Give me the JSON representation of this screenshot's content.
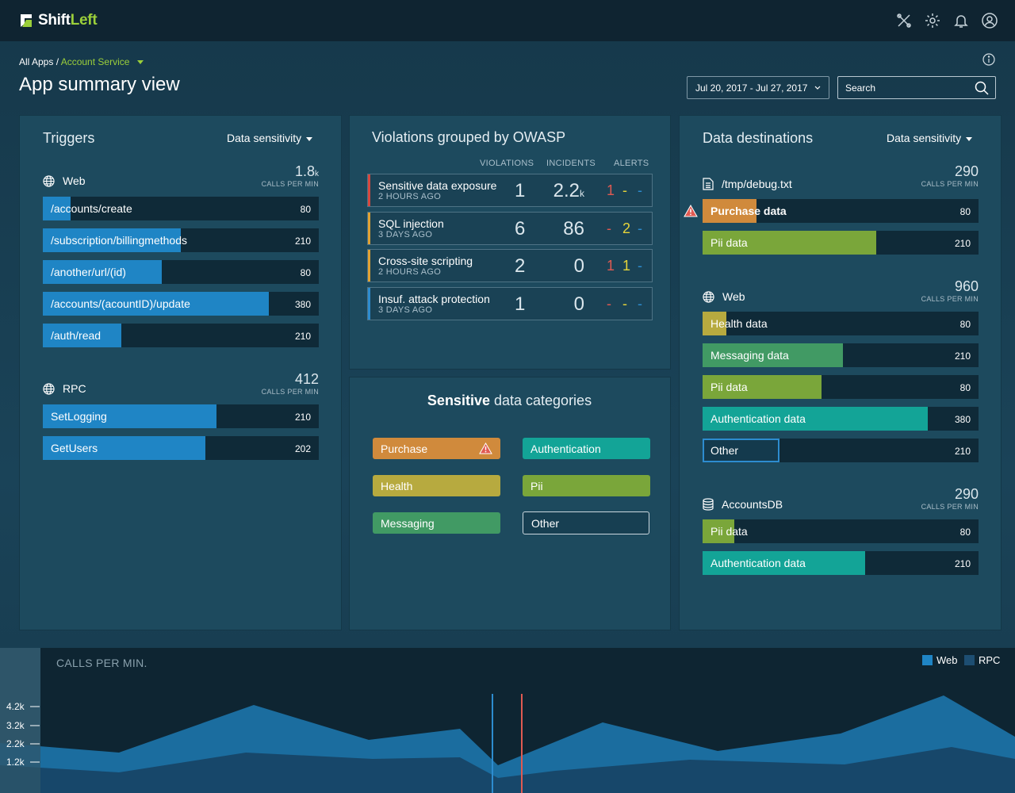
{
  "app": {
    "brand_a": "Shift",
    "brand_b": "Left"
  },
  "breadcrumb": {
    "root": "All Apps /",
    "current": "Account Service"
  },
  "page_title": "App summary view",
  "date_range": "Jul 20, 2017 - Jul 27, 2017",
  "search_placeholder": "Search",
  "triggers": {
    "title": "Triggers",
    "dropdown": "Data sensitivity",
    "web": {
      "label": "Web",
      "num": "1.8",
      "unit": "k",
      "calls_label": "CALLS PER MIN",
      "items": [
        {
          "name": "/accounts/create",
          "value": "80",
          "pct": 0.1
        },
        {
          "name": "/subscription/billingmethods",
          "value": "210",
          "pct": 0.5
        },
        {
          "name": "/another/url/(id)",
          "value": "80",
          "pct": 0.43
        },
        {
          "name": "/accounts/(acountID)/update",
          "value": "380",
          "pct": 0.82
        },
        {
          "name": "/auth/read",
          "value": "210",
          "pct": 0.285
        }
      ]
    },
    "rpc": {
      "label": "RPC",
      "num": "412",
      "calls_label": "CALLS PER MIN",
      "items": [
        {
          "name": "SetLogging",
          "value": "210",
          "pct": 0.63
        },
        {
          "name": "GetUsers",
          "value": "202",
          "pct": 0.59
        }
      ]
    }
  },
  "owasp": {
    "title": "Violations grouped by OWASP",
    "headers": {
      "violations": "VIOLATIONS",
      "incidents": "INCIDENTS",
      "alerts": "ALERTS"
    },
    "rows": [
      {
        "title": "Sensitive data exposure",
        "sub": "2 HOURS AGO",
        "violations": "1",
        "incidents": "2.2",
        "inc_unit": "k",
        "alerts": [
          "1",
          "-",
          "-"
        ],
        "stripe": "#d6483f"
      },
      {
        "title": "SQL injection",
        "sub": "3 DAYS AGO",
        "violations": "6",
        "incidents": "86",
        "inc_unit": "",
        "alerts": [
          "-",
          "2",
          "-"
        ],
        "stripe": "#e0a234"
      },
      {
        "title": "Cross-site scripting",
        "sub": "2 HOURS AGO",
        "violations": "2",
        "incidents": "0",
        "inc_unit": "",
        "alerts": [
          "1",
          "1",
          "-"
        ],
        "stripe": "#e0a234"
      },
      {
        "title": "Insuf. attack protection",
        "sub": "3 DAYS AGO",
        "violations": "1",
        "incidents": "0",
        "inc_unit": "",
        "alerts": [
          "-",
          "-",
          "-"
        ],
        "stripe": "#2d8ccf"
      }
    ]
  },
  "categories": {
    "title_bold": "Sensitive",
    "title_rest": "data categories",
    "chips": {
      "purchase": "Purchase",
      "authentication": "Authentication",
      "health": "Health",
      "pii": "Pii",
      "messaging": "Messaging",
      "other": "Other"
    }
  },
  "destinations": {
    "title": "Data destinations",
    "dropdown": "Data sensitivity",
    "debug": {
      "label": "/tmp/debug.txt",
      "num": "290",
      "calls_label": "CALLS PER MIN",
      "items": [
        {
          "name": "Purchase data",
          "value": "80",
          "pct": 0.195
        },
        {
          "name": "Pii data",
          "value": "210",
          "pct": 0.63
        }
      ]
    },
    "web": {
      "label": "Web",
      "num": "960",
      "calls_label": "CALLS PER MIN",
      "items": [
        {
          "name": "Health data",
          "value": "80",
          "pct": 0.085
        },
        {
          "name": "Messaging data",
          "value": "210",
          "pct": 0.51
        },
        {
          "name": "Pii data",
          "value": "80",
          "pct": 0.43
        },
        {
          "name": "Authentication data",
          "value": "380",
          "pct": 0.815
        },
        {
          "name": "Other",
          "value": "210",
          "pct": 0.28
        }
      ]
    },
    "db": {
      "label": "AccountsDB",
      "num": "290",
      "calls_label": "CALLS PER MIN",
      "items": [
        {
          "name": "Pii data",
          "value": "80",
          "pct": 0.115
        },
        {
          "name": "Authentication data",
          "value": "210",
          "pct": 0.59
        }
      ]
    }
  },
  "calls_chart": {
    "label": "CALLS PER MIN.",
    "legend_web": "Web",
    "legend_rpc": "RPC",
    "yticks": [
      "4.2k",
      "3.2k",
      "2.2k",
      "1.2k"
    ]
  },
  "colors": {
    "blue": "#1f85c5",
    "orange": "#d08a3c",
    "olive": "#b7aa3f",
    "green": "#419a64",
    "lime": "#7aa63a",
    "teal": "#13a497",
    "red_alert": "#e05a52",
    "yellow_alert": "#e5d43a",
    "blue_alert": "#2d8ccf"
  }
}
